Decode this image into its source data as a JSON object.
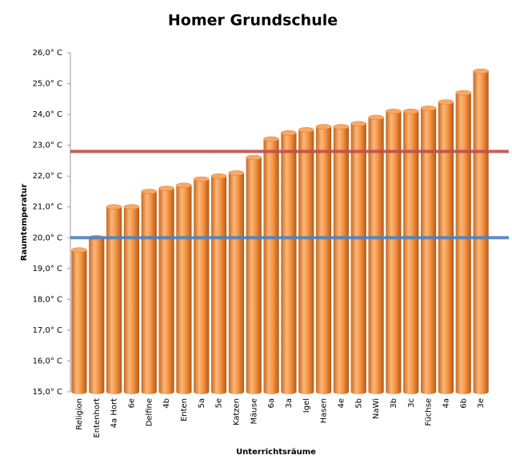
{
  "chart_data": {
    "type": "bar",
    "title": "Homer Grundschule",
    "x_label": "Unterrichtsräume",
    "y_label": "Raumtemperatur",
    "categories": [
      "Religion",
      "Entenhort",
      "4a Hort",
      "6e",
      "Delfine",
      "4b",
      "Enten",
      "5a",
      "5e",
      "Katzen",
      "Mäuse",
      "6a",
      "3a",
      "Igel",
      "Hasen",
      "4e",
      "5b",
      "NaWi",
      "3b",
      "3c",
      "Füchse",
      "4a",
      "6b",
      "3e"
    ],
    "values": [
      19.6,
      20.0,
      21.0,
      21.0,
      21.5,
      21.6,
      21.7,
      21.9,
      22.0,
      22.1,
      22.6,
      23.2,
      23.4,
      23.5,
      23.6,
      23.6,
      23.7,
      23.9,
      24.1,
      24.1,
      24.2,
      24.4,
      24.7,
      25.4
    ],
    "color": "#f79646",
    "ylim": [
      15,
      26
    ],
    "yticks": [
      {
        "value": 15,
        "label": "15,0° C"
      },
      {
        "value": 16,
        "label": "16,0° C"
      },
      {
        "value": 17,
        "label": "17,0° C"
      },
      {
        "value": 18,
        "label": "18,0° C"
      },
      {
        "value": 19,
        "label": "19,0° C"
      },
      {
        "value": 20,
        "label": "20,0° C"
      },
      {
        "value": 21,
        "label": "21,0° C"
      },
      {
        "value": 22,
        "label": "22,0° C"
      },
      {
        "value": 23,
        "label": "23,0° C"
      },
      {
        "value": 24,
        "label": "24,0° C"
      },
      {
        "value": 25,
        "label": "25,0° C"
      },
      {
        "value": 26,
        "label": "26,0° C"
      }
    ],
    "reference_lines": [
      {
        "value": 22.8,
        "color": "#c0504d"
      },
      {
        "value": 20.0,
        "color": "#4f81bd"
      }
    ]
  }
}
